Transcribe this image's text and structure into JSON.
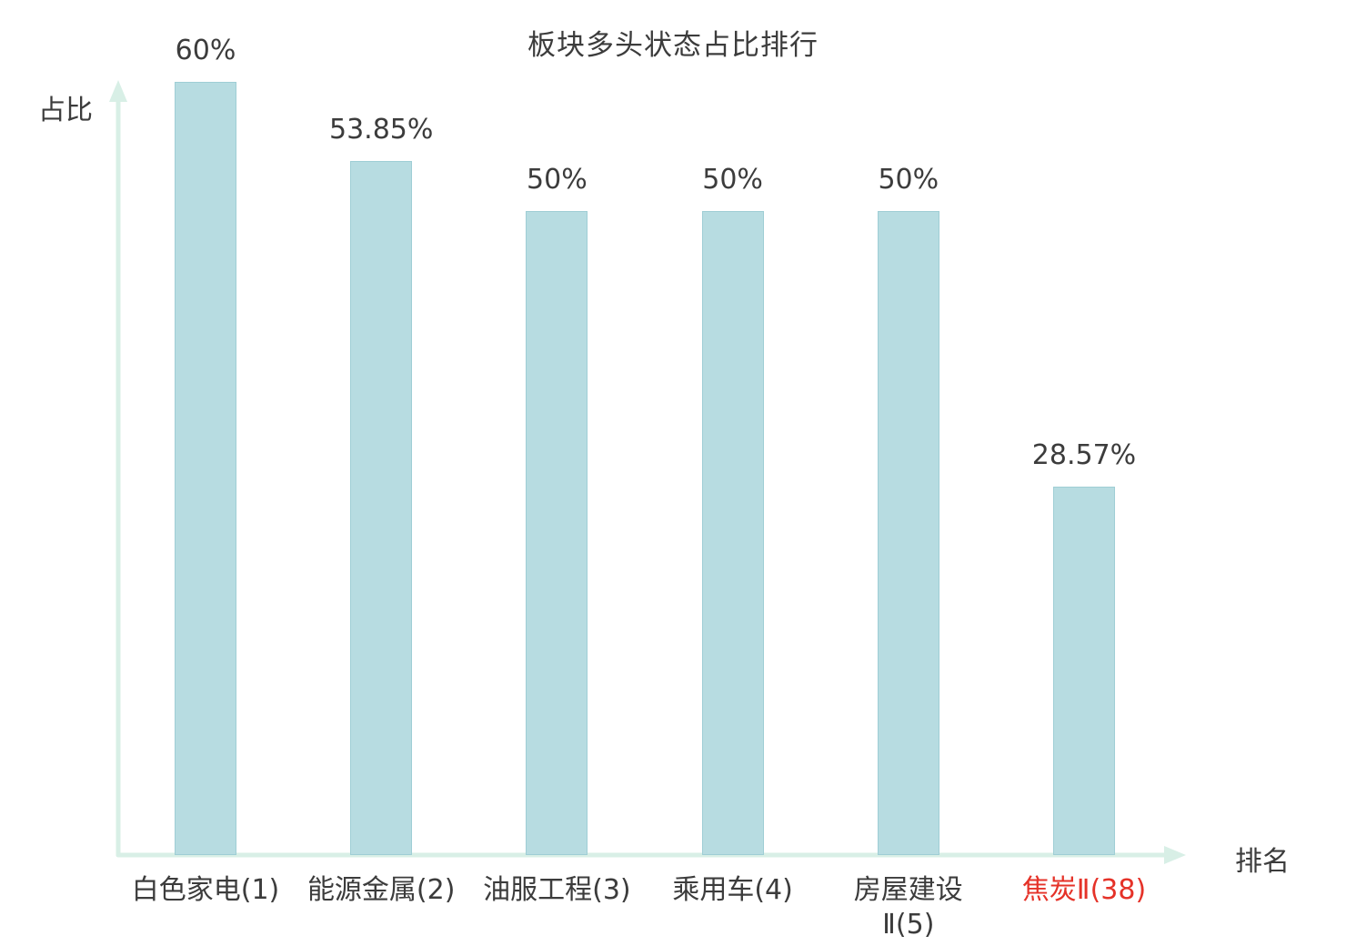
{
  "chart_data": {
    "type": "bar",
    "title": "板块多头状态占比排行",
    "xlabel": "排名",
    "ylabel": "占比",
    "categories": [
      "白色家电(1)",
      "能源金属(2)",
      "油服工程(3)",
      "乘用车(4)",
      "房屋建设\nⅡ(5)",
      "焦炭Ⅱ(38)"
    ],
    "values": [
      60,
      53.85,
      50,
      50,
      50,
      28.57
    ],
    "value_labels": [
      "60%",
      "53.85%",
      "50%",
      "50%",
      "50%",
      "28.57%"
    ],
    "highlight_index": 5,
    "ylim": [
      0,
      60
    ],
    "grid": false,
    "legend": "none",
    "colors": {
      "bar_fill": "#b7dce1",
      "bar_border": "#9fced5",
      "axis": "#d8efe6",
      "text": "#3c3c3c",
      "highlight_text": "#e53228"
    }
  }
}
